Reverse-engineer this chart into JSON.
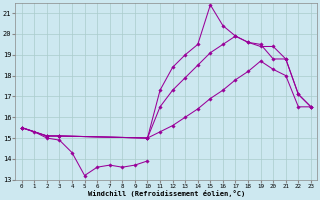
{
  "bg_color": "#cde8f0",
  "line_color": "#990099",
  "grid_color": "#aacccc",
  "xlabel": "Windchill (Refroidissement éolien,°C)",
  "xlim": [
    -0.5,
    23.5
  ],
  "ylim": [
    13,
    21.5
  ],
  "yticks": [
    13,
    14,
    15,
    16,
    17,
    18,
    19,
    20,
    21
  ],
  "xticks": [
    0,
    1,
    2,
    3,
    4,
    5,
    6,
    7,
    8,
    9,
    10,
    11,
    12,
    13,
    14,
    15,
    16,
    17,
    18,
    19,
    20,
    21,
    22,
    23
  ],
  "series": [
    {
      "x": [
        0,
        1,
        2,
        3,
        4,
        5,
        6,
        7,
        8,
        9,
        10
      ],
      "y": [
        15.5,
        15.3,
        15.0,
        14.9,
        14.3,
        13.2,
        13.6,
        13.7,
        13.6,
        13.7,
        13.9
      ]
    },
    {
      "x": [
        0,
        2,
        3,
        10,
        11,
        12,
        13,
        14,
        15,
        16,
        17,
        18,
        19,
        20,
        21,
        22,
        23
      ],
      "y": [
        15.5,
        15.1,
        15.1,
        15.0,
        15.3,
        15.6,
        16.0,
        16.4,
        16.9,
        17.3,
        17.8,
        18.2,
        18.7,
        18.3,
        18.0,
        16.5,
        16.5
      ]
    },
    {
      "x": [
        0,
        2,
        3,
        10,
        11,
        12,
        13,
        14,
        15,
        16,
        17,
        18,
        19,
        20,
        21,
        22,
        23
      ],
      "y": [
        15.5,
        15.1,
        15.1,
        15.0,
        16.5,
        17.3,
        17.9,
        18.5,
        19.1,
        19.5,
        19.9,
        19.6,
        19.4,
        19.4,
        18.8,
        17.1,
        16.5
      ]
    },
    {
      "x": [
        0,
        2,
        3,
        10,
        11,
        12,
        13,
        14,
        15,
        16,
        17,
        18,
        19,
        20,
        21,
        22,
        23
      ],
      "y": [
        15.5,
        15.1,
        15.1,
        15.0,
        17.3,
        18.4,
        19.0,
        19.5,
        21.4,
        20.4,
        19.9,
        19.6,
        19.5,
        18.8,
        18.8,
        17.1,
        16.5
      ]
    }
  ]
}
